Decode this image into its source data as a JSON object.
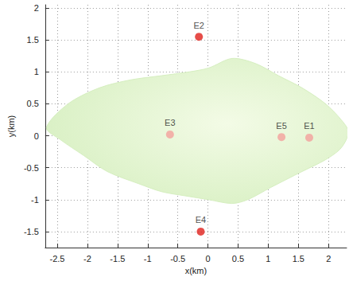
{
  "chart_data": {
    "type": "scatter",
    "xlabel": "x(km)",
    "ylabel": "y(km)",
    "xlim": [
      -2.7,
      2.3
    ],
    "xticks": [
      -2.5,
      -2,
      -1.5,
      -1,
      -0.5,
      0,
      0.5,
      1,
      1.5,
      2
    ],
    "ylim": [
      -1.75,
      2.05
    ],
    "yticks": [
      -1.5,
      -1,
      -0.5,
      0,
      0.5,
      1,
      1.5,
      2
    ],
    "grid": true,
    "outline": {
      "color": "#d6efc0",
      "x": [
        -2.68,
        -2.32,
        -1.8,
        -1.28,
        -0.77,
        -0.31,
        0.01,
        0.4,
        0.79,
        1.17,
        1.56,
        1.95,
        2.21,
        2.33,
        2.21,
        1.95,
        1.56,
        1.04,
        0.66,
        0.4,
        0.01,
        -0.38,
        -0.77,
        -1.15,
        -1.67,
        -2.06,
        -2.45
      ],
      "y": [
        0.125,
        0.5,
        0.75,
        0.875,
        0.94,
        1.0,
        1.06,
        1.21,
        1.13,
        0.94,
        0.75,
        0.5,
        0.25,
        0.06,
        -0.19,
        -0.375,
        -0.56,
        -0.81,
        -1.0,
        -1.06,
        -1.0,
        -0.94,
        -0.875,
        -0.75,
        -0.56,
        -0.31,
        -0.06
      ]
    },
    "points": [
      {
        "label": "E1",
        "x": 1.68,
        "y": -0.03,
        "color": "#f4a09c"
      },
      {
        "label": "E2",
        "x": -0.15,
        "y": 1.55,
        "color": "#e0201b"
      },
      {
        "label": "E3",
        "x": -0.63,
        "y": 0.02,
        "color": "#f4a09c"
      },
      {
        "label": "E4",
        "x": -0.12,
        "y": -1.5,
        "color": "#e0201b"
      },
      {
        "label": "E5",
        "x": 1.22,
        "y": -0.02,
        "color": "#f4a09c"
      }
    ]
  }
}
